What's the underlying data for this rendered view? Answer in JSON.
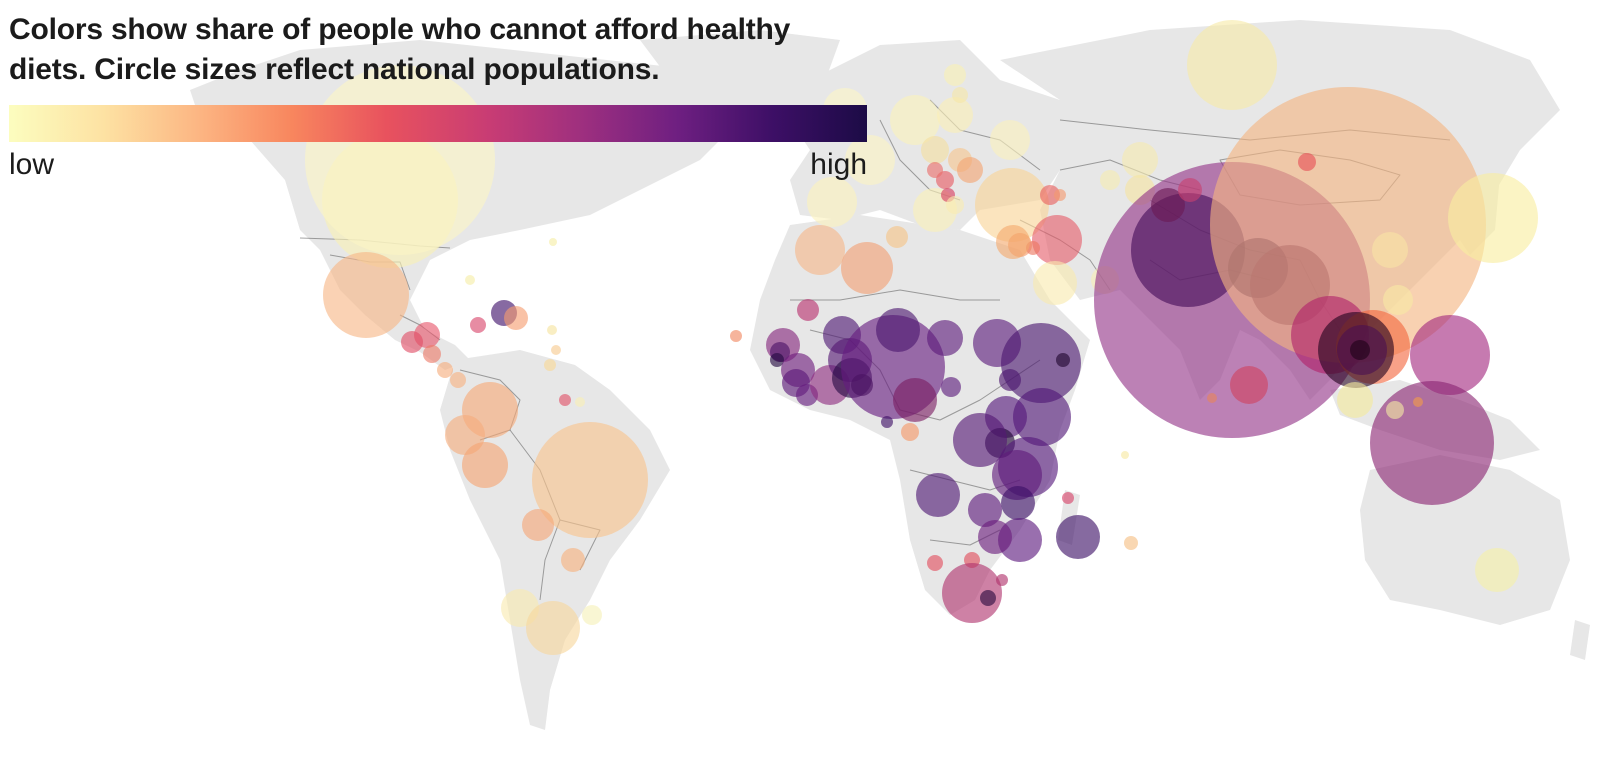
{
  "legend": {
    "title_line1": "Colors show share of people who cannot afford healthy",
    "title_line2": "diets. Circle sizes reflect national populations.",
    "low_label": "low",
    "high_label": "high",
    "scale_colors": [
      "#fcfdbf",
      "#fde2a3",
      "#fcb683",
      "#f8865e",
      "#e8525e",
      "#c83c74",
      "#9d2f7f",
      "#6e1f81",
      "#3d0f66",
      "#1c0b46"
    ]
  },
  "map": {
    "land_color": "#e7e7e7",
    "border_color": "#5a5a5a"
  },
  "chart_data": {
    "type": "bubble-map",
    "color_encoding": "share of people who cannot afford healthy diets (low to high)",
    "size_encoding": "national population",
    "bubbles": [
      {
        "region": "Canada",
        "level": 0.05,
        "size": 0.26
      },
      {
        "region": "United States",
        "level": 0.05,
        "size": 0.55
      },
      {
        "region": "Mexico",
        "level": 0.3,
        "size": 0.3
      },
      {
        "region": "Guatemala",
        "level": 0.55,
        "size": 0.1
      },
      {
        "region": "Honduras",
        "level": 0.6,
        "size": 0.08
      },
      {
        "region": "Nicaragua",
        "level": 0.55,
        "size": 0.07
      },
      {
        "region": "Cuba",
        "level": 0.1,
        "size": 0.08
      },
      {
        "region": "Haiti",
        "level": 0.95,
        "size": 0.09
      },
      {
        "region": "Dominican Republic",
        "level": 0.35,
        "size": 0.08
      },
      {
        "region": "Jamaica",
        "level": 0.5,
        "size": 0.05
      },
      {
        "region": "Colombia",
        "level": 0.3,
        "size": 0.22
      },
      {
        "region": "Venezuela",
        "level": 0.3,
        "size": 0.18
      },
      {
        "region": "Ecuador",
        "level": 0.3,
        "size": 0.12
      },
      {
        "region": "Peru",
        "level": 0.3,
        "size": 0.18
      },
      {
        "region": "Brazil",
        "level": 0.2,
        "size": 0.47
      },
      {
        "region": "Bolivia",
        "level": 0.3,
        "size": 0.11
      },
      {
        "region": "Paraguay",
        "level": 0.25,
        "size": 0.09
      },
      {
        "region": "Chile",
        "level": 0.05,
        "size": 0.13
      },
      {
        "region": "Argentina",
        "level": 0.15,
        "size": 0.22
      },
      {
        "region": "Uruguay",
        "level": 0.05,
        "size": 0.06
      },
      {
        "region": "Guyana",
        "level": 0.55,
        "size": 0.03
      },
      {
        "region": "United Kingdom",
        "level": 0.04,
        "size": 0.2
      },
      {
        "region": "France",
        "level": 0.04,
        "size": 0.2
      },
      {
        "region": "Spain",
        "level": 0.04,
        "size": 0.18
      },
      {
        "region": "Germany",
        "level": 0.04,
        "size": 0.2
      },
      {
        "region": "Italy",
        "level": 0.04,
        "size": 0.18
      },
      {
        "region": "Poland",
        "level": 0.05,
        "size": 0.15
      },
      {
        "region": "Romania",
        "level": 0.2,
        "size": 0.1
      },
      {
        "region": "Serbia",
        "level": 0.25,
        "size": 0.08
      },
      {
        "region": "Ukraine",
        "level": 0.05,
        "size": 0.15
      },
      {
        "region": "Russia",
        "level": 0.05,
        "size": 0.38
      },
      {
        "region": "Kazakhstan",
        "level": 0.1,
        "size": 0.15
      },
      {
        "region": "Turkey",
        "level": 0.2,
        "size": 0.3
      },
      {
        "region": "Iran",
        "level": 0.1,
        "size": 0.28
      },
      {
        "region": "Iraq",
        "level": 0.45,
        "size": 0.2
      },
      {
        "region": "Saudi Arabia",
        "level": 0.05,
        "size": 0.2
      },
      {
        "region": "Syria",
        "level": 0.35,
        "size": 0.11
      },
      {
        "region": "Afghanistan",
        "level": 0.8,
        "size": 0.22
      },
      {
        "region": "Pakistan",
        "level": 0.85,
        "size": 0.48
      },
      {
        "region": "India",
        "level": 0.72,
        "size": 1.0
      },
      {
        "region": "Nepal",
        "level": 0.75,
        "size": 0.17
      },
      {
        "region": "Bangladesh",
        "level": 0.85,
        "size": 0.45
      },
      {
        "region": "Sri Lanka",
        "level": 0.55,
        "size": 0.15
      },
      {
        "region": "China",
        "level": 0.3,
        "size": 1.0
      },
      {
        "region": "Mongolia",
        "level": 0.5,
        "size": 0.07
      },
      {
        "region": "Myanmar",
        "level": 0.6,
        "size": 0.23
      },
      {
        "region": "Thailand",
        "level": 0.3,
        "size": 0.26
      },
      {
        "region": "Vietnam",
        "level": 0.4,
        "size": 0.28
      },
      {
        "region": "Cambodia",
        "level": 0.6,
        "size": 0.12
      },
      {
        "region": "Philippines",
        "level": 0.7,
        "size": 0.35
      },
      {
        "region": "Indonesia",
        "level": 0.7,
        "size": 0.5
      },
      {
        "region": "Malaysia",
        "level": 0.1,
        "size": 0.14
      },
      {
        "region": "Japan",
        "level": 0.05,
        "size": 0.3
      },
      {
        "region": "South Korea",
        "level": 0.05,
        "size": 0.17
      },
      {
        "region": "Australia",
        "level": 0.05,
        "size": 0.18
      },
      {
        "region": "Morocco",
        "level": 0.25,
        "size": 0.2
      },
      {
        "region": "Algeria",
        "level": 0.25,
        "size": 0.2
      },
      {
        "region": "Egypt",
        "level": 0.2,
        "size": 0.38
      },
      {
        "region": "Tunisia",
        "level": 0.2,
        "size": 0.08
      },
      {
        "region": "Senegal",
        "level": 0.75,
        "size": 0.14
      },
      {
        "region": "Mali",
        "level": 0.85,
        "size": 0.15
      },
      {
        "region": "Guinea",
        "level": 0.85,
        "size": 0.12
      },
      {
        "region": "Sierra Leone",
        "level": 0.8,
        "size": 0.1
      },
      {
        "region": "Burkina Faso",
        "level": 0.85,
        "size": 0.15
      },
      {
        "region": "Ghana",
        "level": 0.7,
        "size": 0.18
      },
      {
        "region": "Cote d'Ivoire",
        "level": 0.8,
        "size": 0.18
      },
      {
        "region": "Nigeria",
        "level": 0.85,
        "size": 0.6
      },
      {
        "region": "Niger",
        "level": 0.9,
        "size": 0.18
      },
      {
        "region": "Chad",
        "level": 0.85,
        "size": 0.15
      },
      {
        "region": "Cameroon",
        "level": 0.8,
        "size": 0.18
      },
      {
        "region": "Sudan",
        "level": 0.85,
        "size": 0.25
      },
      {
        "region": "Ethiopia",
        "level": 0.85,
        "size": 0.4
      },
      {
        "region": "Somalia",
        "level": 0.85,
        "size": 0.15
      },
      {
        "region": "Kenya",
        "level": 0.85,
        "size": 0.3
      },
      {
        "region": "Uganda",
        "level": 0.85,
        "size": 0.25
      },
      {
        "region": "DR Congo",
        "level": 0.95,
        "size": 0.38
      },
      {
        "region": "Tanzania",
        "level": 0.85,
        "size": 0.33
      },
      {
        "region": "Angola",
        "level": 0.9,
        "size": 0.25
      },
      {
        "region": "Zambia",
        "level": 0.9,
        "size": 0.17
      },
      {
        "region": "Malawi",
        "level": 0.9,
        "size": 0.17
      },
      {
        "region": "Mozambique",
        "level": 0.85,
        "size": 0.25
      },
      {
        "region": "Zimbabwe",
        "level": 0.85,
        "size": 0.17
      },
      {
        "region": "Madagascar",
        "level": 0.9,
        "size": 0.25
      },
      {
        "region": "Namibia",
        "level": 0.6,
        "size": 0.08
      },
      {
        "region": "Botswana",
        "level": 0.6,
        "size": 0.08
      },
      {
        "region": "South Africa",
        "level": 0.65,
        "size": 0.3
      },
      {
        "region": "Lesotho",
        "level": 0.8,
        "size": 0.06
      },
      {
        "region": "Gabon",
        "level": 0.5,
        "size": 0.06
      },
      {
        "region": "Mauritius",
        "level": 0.35,
        "size": 0.05
      }
    ]
  }
}
